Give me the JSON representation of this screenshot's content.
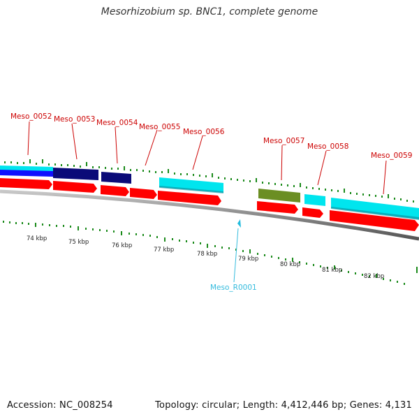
{
  "title": "Mesorhizobium sp. BNC1, complete genome",
  "footer": {
    "accession": "Accession: NC_008254",
    "summary": "Topology: circular; Length: 4,412,446 bp; Genes: 4,131"
  },
  "colors": {
    "forward_cds": "#00e5ee",
    "reverse_cds": "#ff0000",
    "dark_cds": "#0a0a78",
    "olive_cds": "#6b8e23",
    "blue_cds": "#1010ff",
    "rna": "#22bbdd",
    "label_red": "#cc0000",
    "label_cyan": "#33bbdd",
    "tick_green": "#1a8a1a",
    "backbone": "#888888"
  },
  "scale_labels": [
    "74 kbp",
    "75 kbp",
    "76 kbp",
    "77 kbp",
    "78 kbp",
    "79 kbp",
    "80 kbp",
    "81 kbp",
    "82 kbp"
  ],
  "gene_labels": [
    "Meso_0052",
    "Meso_0053",
    "Meso_0054",
    "Meso_0055",
    "Meso_0056",
    "Meso_0057",
    "Meso_0058",
    "Meso_0059"
  ],
  "rna_label": "Meso_R0001"
}
